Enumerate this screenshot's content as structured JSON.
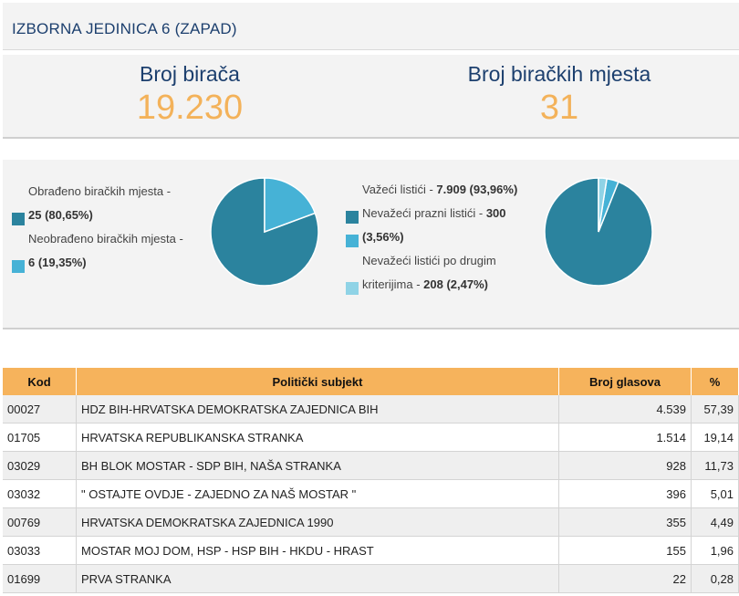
{
  "header": {
    "title": "IZBORNA JEDINICA 6 (ZAPAD)"
  },
  "stats": {
    "voters_label": "Broj birača",
    "voters_value": "19.230",
    "stations_label": "Broj biračkih mjesta",
    "stations_value": "31"
  },
  "chart_data": [
    {
      "type": "pie",
      "series": [
        {
          "label": "Obrađeno biračkih mjesta - ",
          "value_text": "25 (80,65%)",
          "value": 80.65,
          "color": "#2b839e"
        },
        {
          "label": "Neobrađeno biračkih mjesta - ",
          "value_text": "6 (19,35%)",
          "value": 19.35,
          "color": "#46b2d6"
        }
      ]
    },
    {
      "type": "pie",
      "series": [
        {
          "label": "Važeći listići - ",
          "value_text": "7.909 (93,96%)",
          "value": 93.96,
          "color": "#2b839e"
        },
        {
          "label": "Nevažeći prazni listići - ",
          "value_text": "300 (3,56%)",
          "value": 3.56,
          "color": "#46b2d6"
        },
        {
          "label": "Nevažeći listići po drugim kriterijima - ",
          "value_text": "208 (2,47%)",
          "value": 2.47,
          "color": "#8fd3e6"
        }
      ]
    },
    {
      "type": "table",
      "columns": [
        "Kod",
        "Politički subjekt",
        "Broj glasova",
        "%"
      ],
      "rows": [
        [
          "00027",
          "HDZ BIH-HRVATSKA DEMOKRATSKA ZAJEDNICA BIH",
          "4.539",
          "57,39"
        ],
        [
          "01705",
          "HRVATSKA REPUBLIKANSKA STRANKA",
          "1.514",
          "19,14"
        ],
        [
          "03029",
          "BH BLOK MOSTAR - SDP BIH, NAŠA STRANKA",
          "928",
          "11,73"
        ],
        [
          "03032",
          "\" OSTAJTE OVDJE - ZAJEDNO ZA NAŠ MOSTAR \"",
          "396",
          "5,01"
        ],
        [
          "00769",
          "HRVATSKA DEMOKRATSKA ZAJEDNICA 1990",
          "355",
          "4,49"
        ],
        [
          "03033",
          "MOSTAR MOJ DOM, HSP - HSP BIH - HKDU - HRAST",
          "155",
          "1,96"
        ],
        [
          "01699",
          "PRVA STRANKA",
          "22",
          "0,28"
        ]
      ]
    }
  ]
}
